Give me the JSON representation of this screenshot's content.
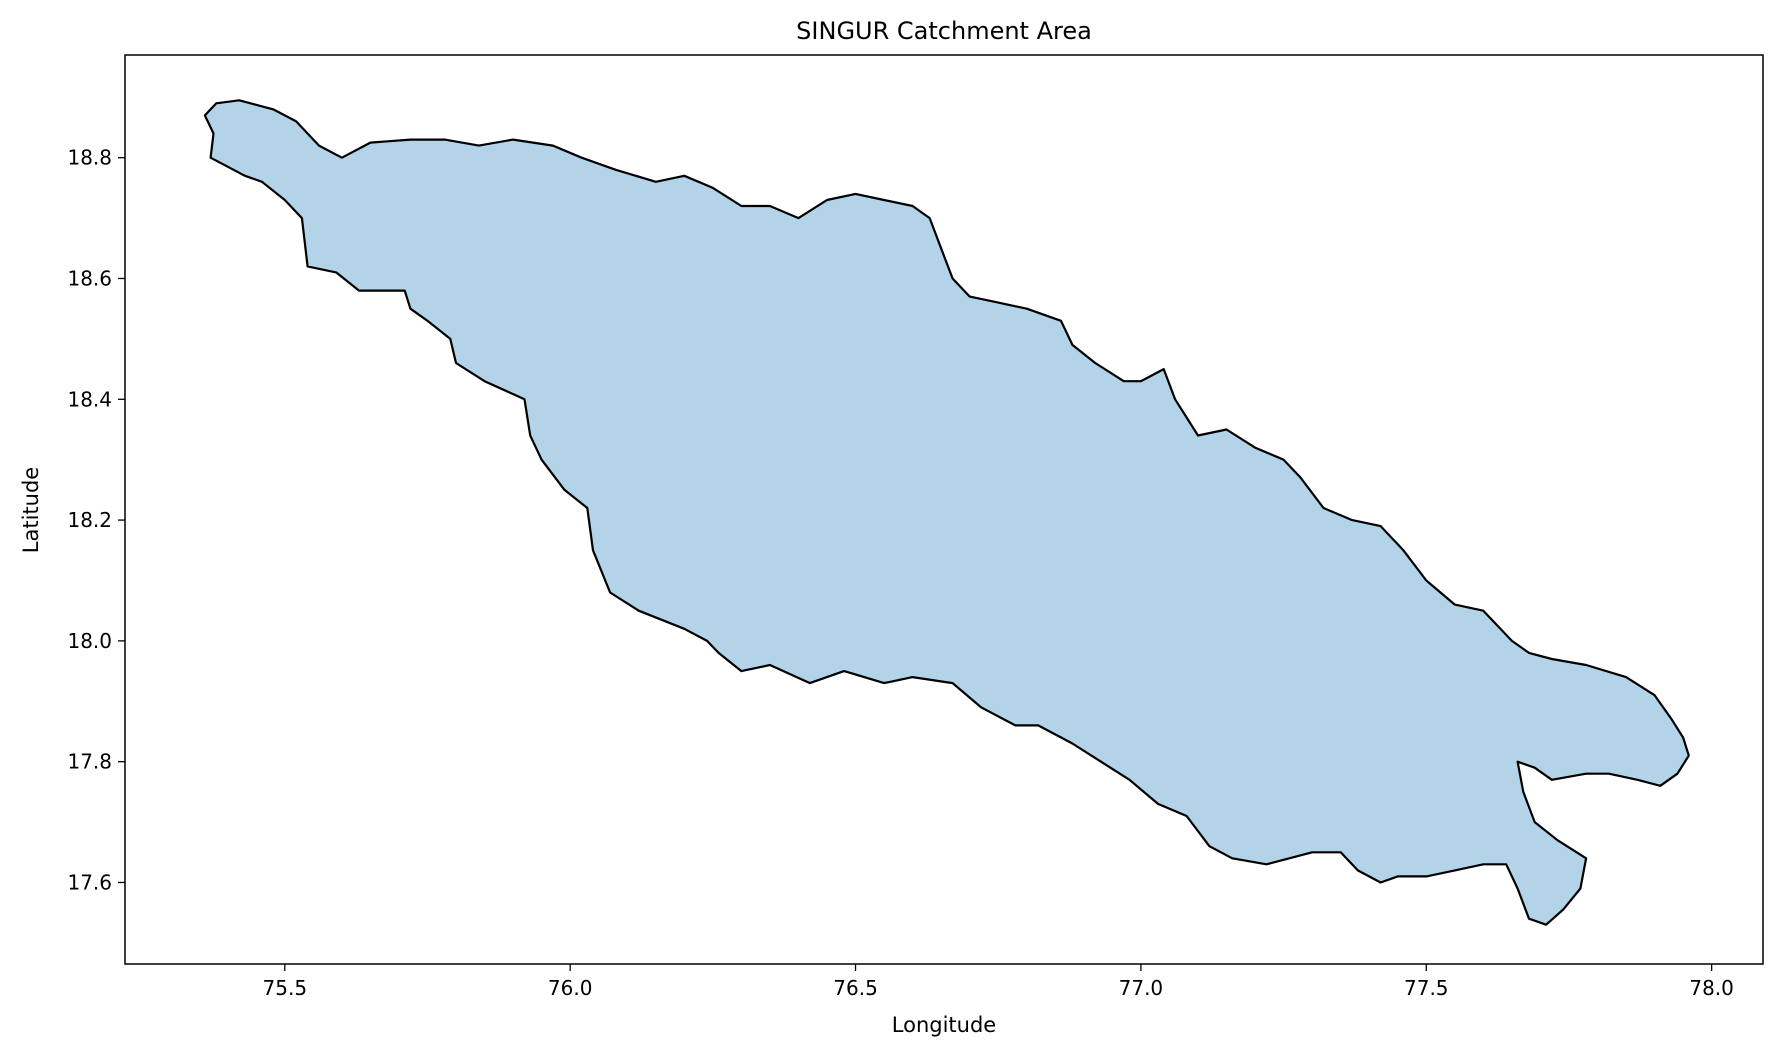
{
  "chart_data": {
    "type": "map",
    "title": "SINGUR Catchment Area",
    "xlabel": "Longitude",
    "ylabel": "Latitude",
    "xlim": [
      75.22,
      78.09
    ],
    "ylim": [
      17.465,
      18.97
    ],
    "xticks": [
      75.5,
      76.0,
      76.5,
      77.0,
      77.5,
      78.0
    ],
    "xtick_labels": [
      "75.5",
      "76.0",
      "76.5",
      "77.0",
      "77.5",
      "78.0"
    ],
    "yticks": [
      17.6,
      17.8,
      18.0,
      18.2,
      18.4,
      18.6,
      18.8
    ],
    "ytick_labels": [
      "17.6",
      "17.8",
      "18.0",
      "18.2",
      "18.4",
      "18.6",
      "18.8"
    ],
    "grid": false,
    "legend": "none",
    "fill_color": "#b3d3e9",
    "edge_color": "#000000",
    "boundary": [
      [
        75.38,
        18.89
      ],
      [
        75.42,
        18.895
      ],
      [
        75.48,
        18.88
      ],
      [
        75.52,
        18.86
      ],
      [
        75.56,
        18.82
      ],
      [
        75.6,
        18.8
      ],
      [
        75.65,
        18.825
      ],
      [
        75.72,
        18.83
      ],
      [
        75.78,
        18.83
      ],
      [
        75.84,
        18.82
      ],
      [
        75.9,
        18.83
      ],
      [
        75.97,
        18.82
      ],
      [
        76.02,
        18.8
      ],
      [
        76.08,
        18.78
      ],
      [
        76.15,
        18.76
      ],
      [
        76.2,
        18.77
      ],
      [
        76.25,
        18.75
      ],
      [
        76.3,
        18.72
      ],
      [
        76.35,
        18.72
      ],
      [
        76.4,
        18.7
      ],
      [
        76.45,
        18.73
      ],
      [
        76.5,
        18.74
      ],
      [
        76.55,
        18.73
      ],
      [
        76.6,
        18.72
      ],
      [
        76.63,
        18.7
      ],
      [
        76.65,
        18.65
      ],
      [
        76.67,
        18.6
      ],
      [
        76.7,
        18.57
      ],
      [
        76.75,
        18.56
      ],
      [
        76.8,
        18.55
      ],
      [
        76.86,
        18.53
      ],
      [
        76.88,
        18.49
      ],
      [
        76.92,
        18.46
      ],
      [
        76.97,
        18.43
      ],
      [
        77.0,
        18.43
      ],
      [
        77.04,
        18.45
      ],
      [
        77.06,
        18.4
      ],
      [
        77.1,
        18.34
      ],
      [
        77.15,
        18.35
      ],
      [
        77.2,
        18.32
      ],
      [
        77.25,
        18.3
      ],
      [
        77.28,
        18.27
      ],
      [
        77.32,
        18.22
      ],
      [
        77.37,
        18.2
      ],
      [
        77.42,
        18.19
      ],
      [
        77.46,
        18.15
      ],
      [
        77.5,
        18.1
      ],
      [
        77.55,
        18.06
      ],
      [
        77.6,
        18.05
      ],
      [
        77.65,
        18.0
      ],
      [
        77.68,
        17.98
      ],
      [
        77.72,
        17.97
      ],
      [
        77.78,
        17.96
      ],
      [
        77.85,
        17.94
      ],
      [
        77.9,
        17.91
      ],
      [
        77.93,
        17.87
      ],
      [
        77.95,
        17.84
      ],
      [
        77.96,
        17.81
      ],
      [
        77.94,
        17.78
      ],
      [
        77.91,
        17.76
      ],
      [
        77.87,
        17.77
      ],
      [
        77.82,
        17.78
      ],
      [
        77.78,
        17.78
      ],
      [
        77.72,
        17.77
      ],
      [
        77.69,
        17.79
      ],
      [
        77.66,
        17.8
      ],
      [
        77.67,
        17.75
      ],
      [
        77.69,
        17.7
      ],
      [
        77.73,
        17.67
      ],
      [
        77.78,
        17.64
      ],
      [
        77.77,
        17.59
      ],
      [
        77.74,
        17.555
      ],
      [
        77.71,
        17.53
      ],
      [
        77.68,
        17.54
      ],
      [
        77.66,
        17.59
      ],
      [
        77.64,
        17.63
      ],
      [
        77.6,
        17.63
      ],
      [
        77.55,
        17.62
      ],
      [
        77.5,
        17.61
      ],
      [
        77.45,
        17.61
      ],
      [
        77.42,
        17.6
      ],
      [
        77.38,
        17.62
      ],
      [
        77.35,
        17.65
      ],
      [
        77.3,
        17.65
      ],
      [
        77.26,
        17.64
      ],
      [
        77.22,
        17.63
      ],
      [
        77.16,
        17.64
      ],
      [
        77.12,
        17.66
      ],
      [
        77.08,
        17.71
      ],
      [
        77.03,
        17.73
      ],
      [
        76.98,
        17.77
      ],
      [
        76.93,
        17.8
      ],
      [
        76.88,
        17.83
      ],
      [
        76.82,
        17.86
      ],
      [
        76.78,
        17.86
      ],
      [
        76.72,
        17.89
      ],
      [
        76.67,
        17.93
      ],
      [
        76.6,
        17.94
      ],
      [
        76.55,
        17.93
      ],
      [
        76.48,
        17.95
      ],
      [
        76.42,
        17.93
      ],
      [
        76.35,
        17.96
      ],
      [
        76.3,
        17.95
      ],
      [
        76.26,
        17.98
      ],
      [
        76.24,
        18.0
      ],
      [
        76.2,
        18.02
      ],
      [
        76.12,
        18.05
      ],
      [
        76.07,
        18.08
      ],
      [
        76.04,
        18.15
      ],
      [
        76.03,
        18.22
      ],
      [
        75.99,
        18.25
      ],
      [
        75.95,
        18.3
      ],
      [
        75.93,
        18.34
      ],
      [
        75.92,
        18.4
      ],
      [
        75.85,
        18.43
      ],
      [
        75.8,
        18.46
      ],
      [
        75.79,
        18.5
      ],
      [
        75.75,
        18.53
      ],
      [
        75.72,
        18.55
      ],
      [
        75.71,
        18.58
      ],
      [
        75.67,
        18.58
      ],
      [
        75.63,
        18.58
      ],
      [
        75.59,
        18.61
      ],
      [
        75.54,
        18.62
      ],
      [
        75.53,
        18.7
      ],
      [
        75.5,
        18.73
      ],
      [
        75.46,
        18.76
      ],
      [
        75.43,
        18.77
      ],
      [
        75.39,
        18.79
      ],
      [
        75.37,
        18.8
      ],
      [
        75.375,
        18.84
      ],
      [
        75.36,
        18.87
      ]
    ]
  }
}
